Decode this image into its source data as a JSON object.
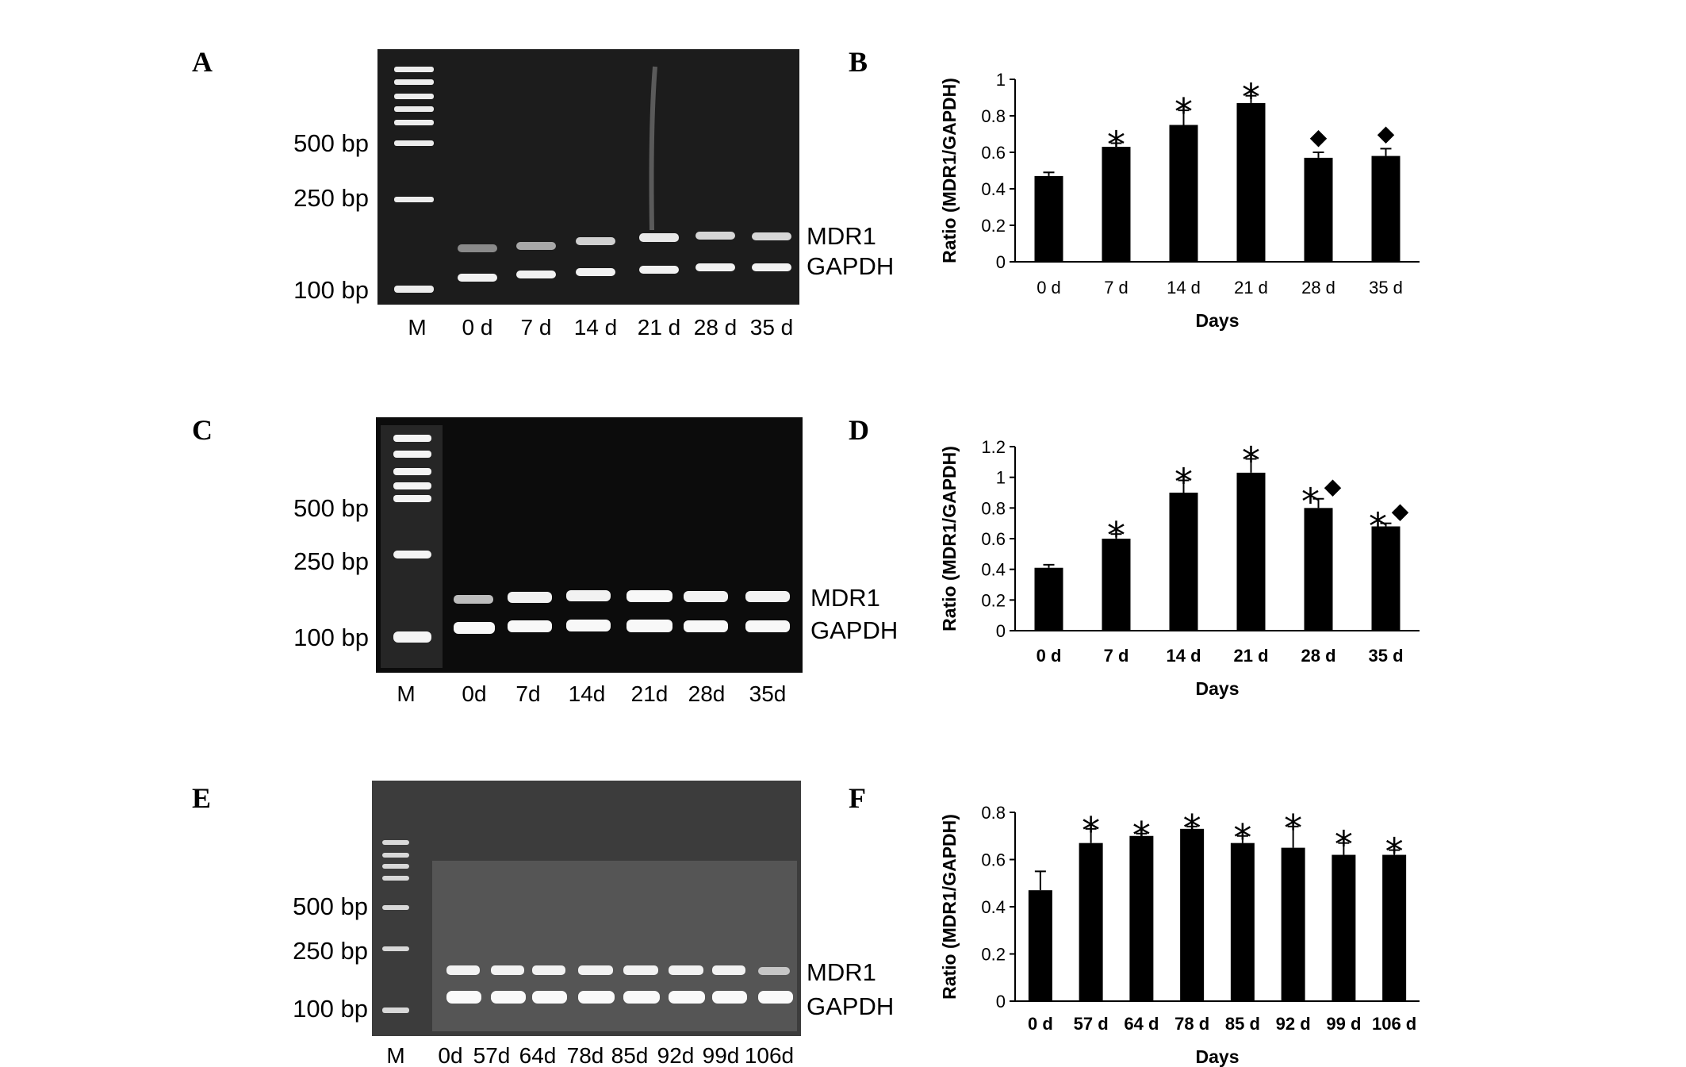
{
  "panels": [
    {
      "letter": "A",
      "gel": {
        "markers": [
          "500 bp",
          "250 bp",
          "100 bp"
        ],
        "lanes": [
          "M",
          "0 d",
          "7 d",
          "14 d",
          "21 d",
          "28 d",
          "35 d"
        ],
        "bands": [
          "MDR1",
          "GAPDH"
        ]
      }
    },
    {
      "letter": "C",
      "gel": {
        "markers": [
          "500 bp",
          "250 bp",
          "100 bp"
        ],
        "lanes": [
          "M",
          "0d",
          "7d",
          "14d",
          "21d",
          "28d",
          "35d"
        ],
        "bands": [
          "MDR1",
          "GAPDH"
        ]
      }
    },
    {
      "letter": "E",
      "gel": {
        "markers": [
          "500 bp",
          "250 bp",
          "100 bp"
        ],
        "lanes": [
          "M",
          "0d",
          "57d",
          "64d",
          "78d",
          "85d",
          "92d",
          "99d",
          "106d"
        ],
        "bands": [
          "MDR1",
          "GAPDH"
        ]
      }
    }
  ],
  "chart_data": [
    {
      "panel": "B",
      "type": "bar",
      "xlabel": "Days",
      "ylabel": "Ratio (MDR1/GAPDH)",
      "ylim": [
        0,
        1
      ],
      "yticks": [
        "0",
        "0.2",
        "0.4",
        "0.6",
        "0.8",
        "1"
      ],
      "categories": [
        "0 d",
        "7 d",
        "14 d",
        "21 d",
        "28 d",
        "35 d"
      ],
      "values": [
        0.47,
        0.63,
        0.75,
        0.87,
        0.57,
        0.58
      ],
      "errors": [
        0.02,
        0.02,
        0.08,
        0.04,
        0.03,
        0.04
      ],
      "markers": [
        "",
        "*",
        "*",
        "*",
        "◆",
        "◆"
      ],
      "bold_categories": false
    },
    {
      "panel": "D",
      "type": "bar",
      "xlabel": "Days",
      "ylabel": "Ratio (MDR1/GAPDH)",
      "ylim": [
        0,
        1.2
      ],
      "yticks": [
        "0",
        "0.2",
        "0.4",
        "0.6",
        "0.8",
        "1",
        "1.2"
      ],
      "categories": [
        "0 d",
        "7 d",
        "14 d",
        "21 d",
        "28 d",
        "35 d"
      ],
      "values": [
        0.41,
        0.6,
        0.9,
        1.03,
        0.8,
        0.68
      ],
      "errors": [
        0.02,
        0.03,
        0.08,
        0.09,
        0.06,
        0.02
      ],
      "markers": [
        "",
        "*",
        "*",
        "*",
        "*◆",
        "*◆"
      ],
      "bold_categories": true
    },
    {
      "panel": "F",
      "type": "bar",
      "xlabel": "Days",
      "ylabel": "Ratio (MDR1/GAPDH)",
      "ylim": [
        0,
        0.8
      ],
      "yticks": [
        "0",
        "0.2",
        "0.4",
        "0.6",
        "0.8"
      ],
      "categories": [
        "0 d",
        "57 d",
        "64 d",
        "78 d",
        "85 d",
        "92 d",
        "99 d",
        "106 d"
      ],
      "values": [
        0.47,
        0.67,
        0.7,
        0.73,
        0.67,
        0.65,
        0.62,
        0.62
      ],
      "errors": [
        0.08,
        0.06,
        0.01,
        0.01,
        0.03,
        0.09,
        0.05,
        0.02
      ],
      "markers": [
        "",
        "*",
        "*",
        "*",
        "*",
        "*",
        "*",
        "*"
      ],
      "bold_categories": true
    }
  ]
}
